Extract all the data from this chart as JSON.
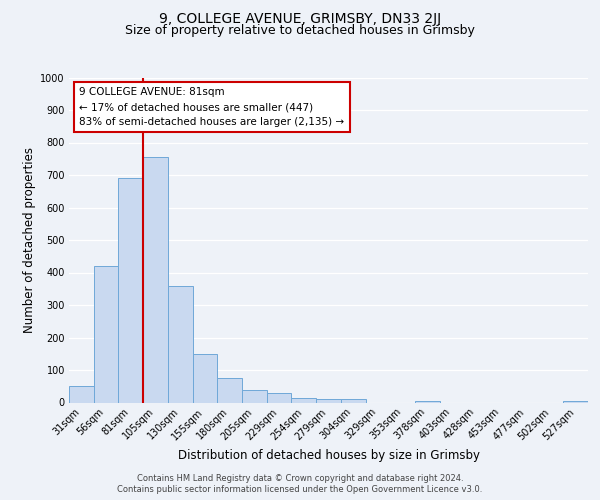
{
  "title_line1": "9, COLLEGE AVENUE, GRIMSBY, DN33 2JJ",
  "title_line2": "Size of property relative to detached houses in Grimsby",
  "xlabel": "Distribution of detached houses by size in Grimsby",
  "ylabel": "Number of detached properties",
  "bin_labels": [
    "31sqm",
    "56sqm",
    "81sqm",
    "105sqm",
    "130sqm",
    "155sqm",
    "180sqm",
    "205sqm",
    "229sqm",
    "254sqm",
    "279sqm",
    "304sqm",
    "329sqm",
    "353sqm",
    "378sqm",
    "403sqm",
    "428sqm",
    "453sqm",
    "477sqm",
    "502sqm",
    "527sqm"
  ],
  "bar_heights": [
    50,
    420,
    690,
    755,
    360,
    150,
    75,
    40,
    30,
    15,
    10,
    10,
    0,
    0,
    5,
    0,
    0,
    0,
    0,
    0,
    5
  ],
  "bar_color": "#c9d9f0",
  "bar_edge_color": "#6fa8d8",
  "vline_color": "#cc0000",
  "vline_bar_index": 2,
  "annotation_text": "9 COLLEGE AVENUE: 81sqm\n← 17% of detached houses are smaller (447)\n83% of semi-detached houses are larger (2,135) →",
  "annotation_box_color": "#ffffff",
  "annotation_box_edge": "#cc0000",
  "ylim": [
    0,
    1000
  ],
  "yticks": [
    0,
    100,
    200,
    300,
    400,
    500,
    600,
    700,
    800,
    900,
    1000
  ],
  "footer_line1": "Contains HM Land Registry data © Crown copyright and database right 2024.",
  "footer_line2": "Contains public sector information licensed under the Open Government Licence v3.0.",
  "bg_color": "#eef2f8",
  "plot_bg_color": "#eef2f8",
  "grid_color": "#ffffff",
  "title_fontsize": 10,
  "subtitle_fontsize": 9,
  "axis_label_fontsize": 8.5,
  "tick_fontsize": 7,
  "annotation_fontsize": 7.5,
  "footer_fontsize": 6
}
